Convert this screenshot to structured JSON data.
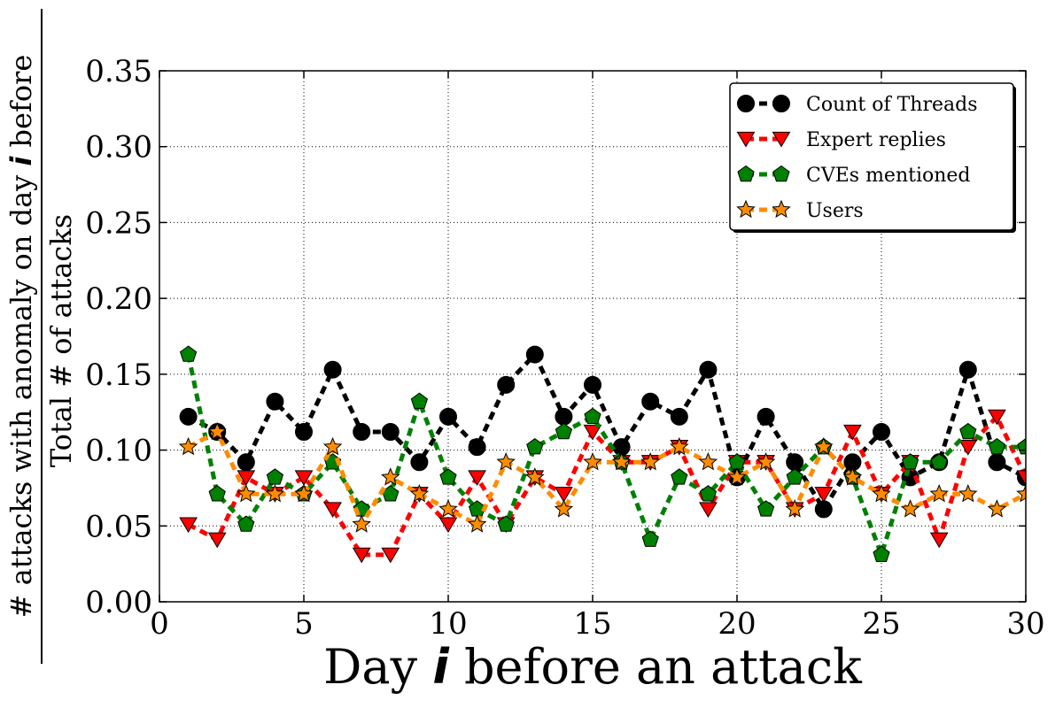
{
  "chart_data": {
    "type": "line",
    "xlabel": "Day i before an attack",
    "xlabel_prefix": "Day ",
    "xlabel_var": "i",
    "xlabel_suffix": " before an attack",
    "ylabel_numerator_prefix": "# attacks with anomaly on day ",
    "ylabel_numerator_var": "i",
    "ylabel_numerator_suffix": " before",
    "ylabel_denominator": "Total # of attacks",
    "xlim": [
      0,
      30
    ],
    "ylim": [
      0.0,
      0.35
    ],
    "xticks": [
      0,
      5,
      10,
      15,
      20,
      25,
      30
    ],
    "xtick_labels": [
      "0",
      "5",
      "10",
      "15",
      "20",
      "25",
      "30"
    ],
    "yticks": [
      0.0,
      0.05,
      0.1,
      0.15,
      0.2,
      0.25,
      0.3,
      0.35
    ],
    "ytick_labels": [
      "0.00",
      "0.05",
      "0.10",
      "0.15",
      "0.20",
      "0.25",
      "0.30",
      "0.35"
    ],
    "grid": true,
    "legend_position": "top-right",
    "x": [
      1,
      2,
      3,
      4,
      5,
      6,
      7,
      8,
      9,
      10,
      11,
      12,
      13,
      14,
      15,
      16,
      17,
      18,
      19,
      20,
      21,
      22,
      23,
      24,
      25,
      26,
      27,
      28,
      29,
      30
    ],
    "series": [
      {
        "name": "Count of Threads",
        "color": "#000000",
        "marker": "circle",
        "values": [
          0.122,
          0.112,
          0.092,
          0.132,
          0.112,
          0.153,
          0.112,
          0.112,
          0.092,
          0.122,
          0.102,
          0.143,
          0.163,
          0.122,
          0.143,
          0.102,
          0.132,
          0.122,
          0.153,
          0.082,
          0.122,
          0.092,
          0.061,
          0.092,
          0.112,
          0.082,
          0.092,
          0.153,
          0.092,
          0.082
        ]
      },
      {
        "name": "Expert replies",
        "color": "#ff0000",
        "marker": "triangle-down",
        "values": [
          0.051,
          0.041,
          0.082,
          0.071,
          0.082,
          0.061,
          0.031,
          0.031,
          0.071,
          0.051,
          0.082,
          0.051,
          0.082,
          0.071,
          0.112,
          0.092,
          0.092,
          0.102,
          0.061,
          0.092,
          0.092,
          0.061,
          0.071,
          0.112,
          0.071,
          0.092,
          0.041,
          0.102,
          0.122,
          0.082
        ]
      },
      {
        "name": "CVEs mentioned",
        "color": "#008000",
        "marker": "pentagon",
        "values": [
          0.163,
          0.071,
          0.051,
          0.082,
          0.071,
          0.092,
          0.061,
          0.071,
          0.132,
          0.082,
          0.061,
          0.051,
          0.102,
          0.112,
          0.122,
          0.092,
          0.041,
          0.082,
          0.071,
          0.092,
          0.061,
          0.082,
          0.102,
          0.082,
          0.031,
          0.092,
          0.092,
          0.112,
          0.102,
          0.102
        ]
      },
      {
        "name": "Users",
        "color": "#ff8c00",
        "marker": "star",
        "values": [
          0.102,
          0.112,
          0.071,
          0.071,
          0.071,
          0.102,
          0.051,
          0.082,
          0.071,
          0.061,
          0.051,
          0.092,
          0.082,
          0.061,
          0.092,
          0.092,
          0.092,
          0.102,
          0.092,
          0.082,
          0.092,
          0.061,
          0.102,
          0.082,
          0.071,
          0.061,
          0.071,
          0.071,
          0.061,
          0.071
        ]
      }
    ]
  }
}
